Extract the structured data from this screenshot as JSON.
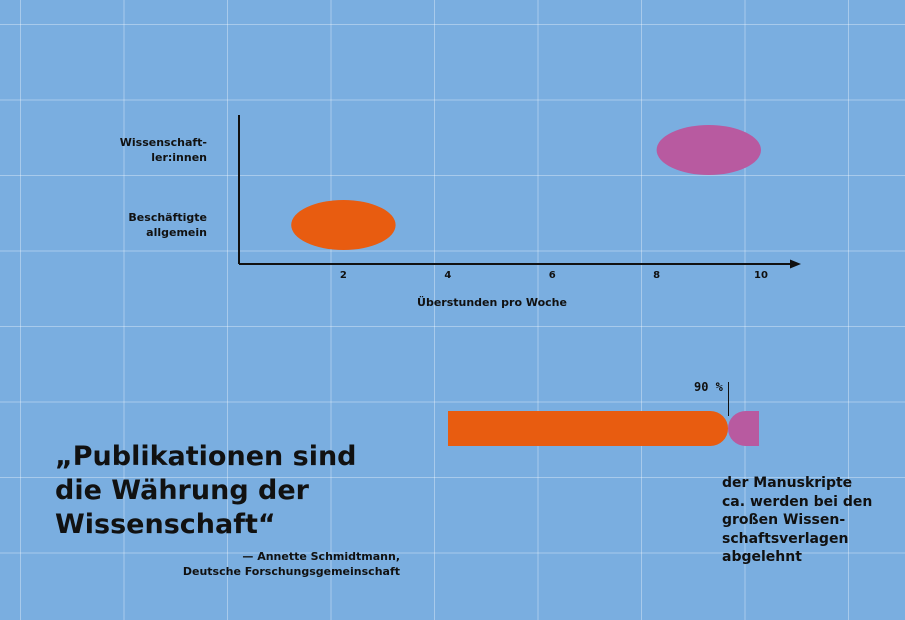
{
  "chart_data": [
    {
      "type": "scatter",
      "xlabel": "Überstunden pro Woche",
      "x_ticks": [
        "2",
        "4",
        "6",
        "8",
        "10"
      ],
      "xlim": [
        0,
        11.0
      ],
      "categories": [
        "Wissenschaft-\nler:innen",
        "Beschäftigte\nallgemein"
      ],
      "series": [
        {
          "category": "Wissenschaft-\nler:innen",
          "x_from": 8,
          "x_to": 10,
          "color": "#b85aa0"
        },
        {
          "category": "Beschäftigte\nallgemein",
          "x_from": 1,
          "x_to": 3,
          "color": "#e85c10"
        }
      ]
    },
    {
      "type": "bar",
      "orientation": "horizontal",
      "values": [
        90,
        10
      ],
      "unit": "%",
      "data_label": "90 %",
      "colors": [
        "#e85c10",
        "#b85aa0"
      ],
      "caption": "der Manuskripte\nca. werden bei den\ngroßen Wissen-\nschaftsverlagen\nabgelehnt"
    }
  ],
  "quote": {
    "text": "„Publikationen sind\ndie Währung der\nWissenschaft“",
    "attribution": "— Annette Schmidtmann,\nDeutsche Forschungsgemeinschaft"
  },
  "colors": {
    "background": "#7aaee0",
    "orange": "#e85c10",
    "purple": "#b85aa0",
    "text": "#111111"
  }
}
